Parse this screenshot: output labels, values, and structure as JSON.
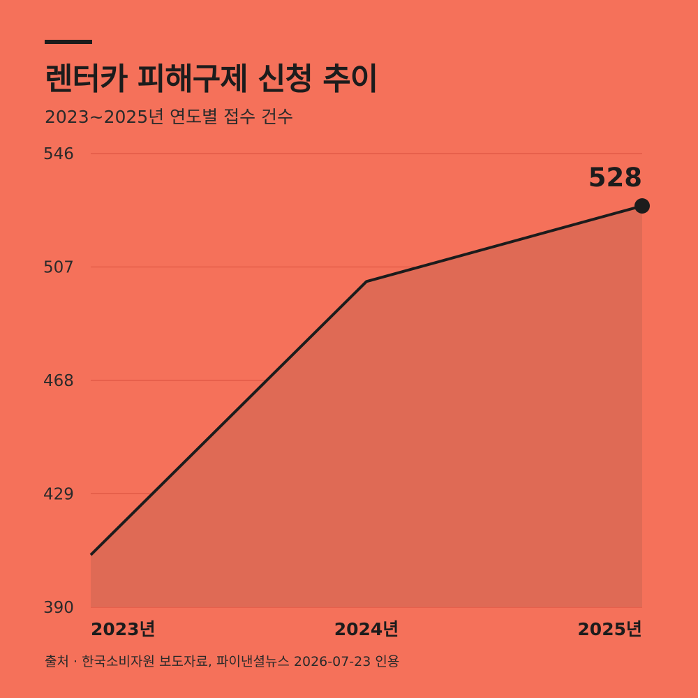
{
  "header": {
    "title": "렌터카 피해구제 신청 추이",
    "subtitle": "2023~2025년 연도별 접수 건수"
  },
  "footer": {
    "source": "출처 · 한국소비자원 보도자료, 파이낸셜뉴스 2026-07-23 인용"
  },
  "colors": {
    "background": "#F5715A",
    "line": "#1c1c1c",
    "area": "#DF6A55",
    "grid": "#D9503D"
  },
  "chart_data": {
    "type": "area",
    "categories": [
      "2023년",
      "2024년",
      "2025년"
    ],
    "values": [
      408,
      502,
      528
    ],
    "ylim": [
      390,
      546
    ],
    "yticks": [
      390,
      429,
      468,
      507,
      546
    ],
    "ytick_labels": [
      "390",
      "429",
      "468",
      "507",
      "546"
    ],
    "grid": true,
    "highlight": {
      "index": 2,
      "label": "528"
    }
  }
}
